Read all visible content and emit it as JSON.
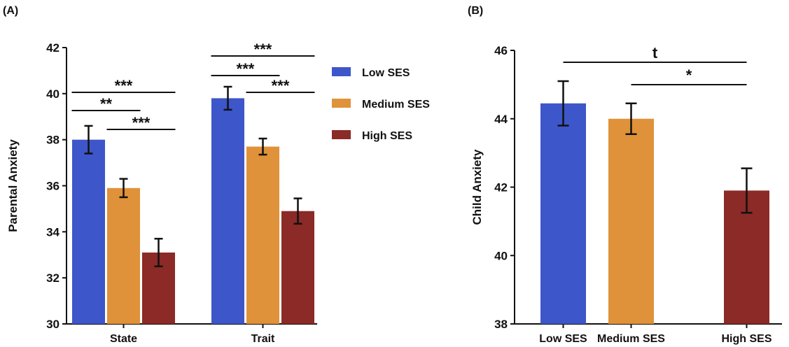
{
  "panels": {
    "a_label": "(A)",
    "b_label": "(B)"
  },
  "chart_data": [
    {
      "type": "bar",
      "categories": [
        "State",
        "Trait"
      ],
      "ylabel": "Parental Anxiety",
      "ylim": [
        30,
        42
      ],
      "yticks": [
        30,
        32,
        34,
        36,
        38,
        40,
        42
      ],
      "legend": {
        "placement": "right"
      },
      "series": [
        {
          "name": "Low SES",
          "color": "#3d56c9",
          "values": [
            38.0,
            39.8
          ],
          "errors": [
            0.6,
            0.5
          ]
        },
        {
          "name": "Medium SES",
          "color": "#e0923a",
          "values": [
            35.9,
            37.7
          ],
          "errors": [
            0.4,
            0.35
          ]
        },
        {
          "name": "High SES",
          "color": "#8b2a26",
          "values": [
            33.1,
            34.9
          ],
          "errors": [
            0.6,
            0.55
          ]
        }
      ],
      "significance": [
        {
          "category": 0,
          "from": 0,
          "to": 1,
          "label": "**"
        },
        {
          "category": 0,
          "from": 1,
          "to": 2,
          "label": "***"
        },
        {
          "category": 0,
          "from": 0,
          "to": 2,
          "label": "***"
        },
        {
          "category": 1,
          "from": 0,
          "to": 1,
          "label": "***"
        },
        {
          "category": 1,
          "from": 1,
          "to": 2,
          "label": "***"
        },
        {
          "category": 1,
          "from": 0,
          "to": 2,
          "label": "***"
        }
      ]
    },
    {
      "type": "bar",
      "categories": [
        "Low SES",
        "Medium SES",
        "High SES"
      ],
      "ylabel": "Child Anxiety",
      "ylim": [
        38,
        46
      ],
      "yticks": [
        38,
        40,
        42,
        44,
        46
      ],
      "colors": [
        "#3d56c9",
        "#e0923a",
        "#8b2a26"
      ],
      "values": [
        44.45,
        44.0,
        41.9
      ],
      "errors": [
        0.65,
        0.45,
        0.65
      ],
      "significance": [
        {
          "from": 0,
          "to": 2,
          "label": "t"
        },
        {
          "from": 1,
          "to": 2,
          "label": "*"
        }
      ]
    }
  ]
}
